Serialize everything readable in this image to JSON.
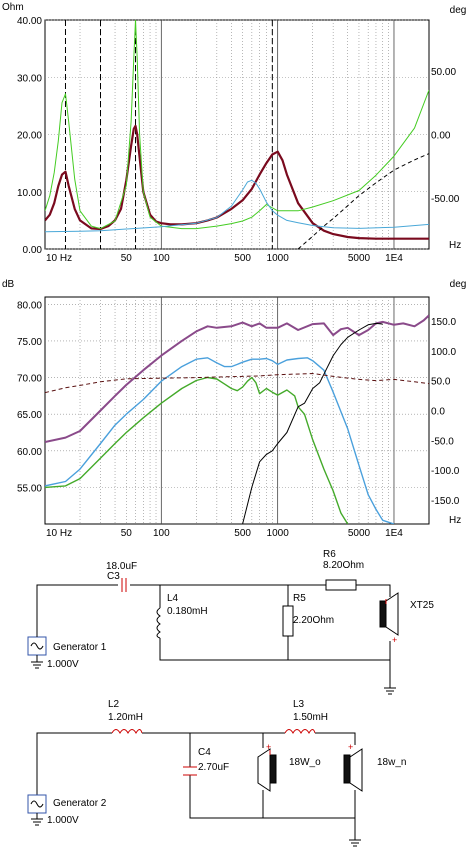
{
  "chart_data": [
    {
      "type": "line",
      "xscale": "log",
      "xlim": [
        10,
        20000
      ],
      "ylim_left": [
        0,
        40
      ],
      "ylim_right": [
        -90,
        90
      ],
      "left_unit": "Ohm",
      "right_unit": "deg",
      "x_unit": "Hz",
      "left_ticks": [
        "0.00",
        "10.00",
        "20.00",
        "30.00",
        "40.00"
      ],
      "left_tick_values": [
        0,
        10,
        20,
        30,
        40
      ],
      "right_ticks": [
        "-50.00",
        "0.00",
        "50.00"
      ],
      "right_tick_values": [
        -50,
        0,
        50
      ],
      "x_ticks": [
        "10 Hz",
        "50",
        "100",
        "500",
        "1000",
        "5000",
        "1E4"
      ],
      "x_tick_values": [
        10,
        50,
        100,
        500,
        1000,
        5000,
        10000
      ],
      "markers_x": [
        15,
        30,
        60,
        900
      ],
      "series": [
        {
          "color": "#7a0a1e",
          "width": 2.2,
          "dash": "",
          "axis": "left",
          "x": [
            10,
            11,
            12,
            13,
            14,
            15,
            16,
            18,
            20,
            25,
            30,
            35,
            40,
            45,
            50,
            55,
            58,
            60,
            62,
            65,
            70,
            80,
            90,
            100,
            120,
            150,
            200,
            250,
            300,
            400,
            500,
            600,
            700,
            800,
            900,
            1000,
            1100,
            1200,
            1500,
            2000,
            2500,
            3000,
            4000,
            5000,
            7000,
            10000,
            15000,
            20000
          ],
          "y": [
            5,
            6,
            8,
            11,
            13,
            13.5,
            11,
            7,
            5,
            3.6,
            3.5,
            4,
            5,
            7,
            12,
            18,
            21,
            21.5,
            20,
            16,
            10,
            6,
            4.8,
            4.5,
            4.3,
            4.3,
            4.5,
            5,
            5.5,
            7,
            8.5,
            10.5,
            13,
            15,
            16.5,
            17,
            15.5,
            13,
            8,
            4.5,
            3.2,
            2.6,
            2.1,
            1.9,
            1.8,
            1.8,
            1.8,
            1.8
          ]
        },
        {
          "color": "#44cc22",
          "width": 1,
          "dash": "",
          "axis": "right",
          "x": [
            10,
            11,
            12,
            13,
            14,
            15,
            16,
            18,
            20,
            25,
            30,
            40,
            50,
            55,
            58,
            60,
            62,
            65,
            70,
            80,
            100,
            150,
            200,
            300,
            400,
            500,
            600,
            700,
            800,
            1000,
            1500,
            2000,
            3000,
            5000,
            7000,
            10000,
            15000,
            20000
          ],
          "y": [
            -60,
            -48,
            -30,
            -5,
            25,
            32,
            10,
            -35,
            -60,
            -72,
            -74,
            -68,
            -40,
            10,
            60,
            90,
            60,
            0,
            -45,
            -65,
            -72,
            -74,
            -74,
            -72,
            -70,
            -68,
            -65,
            -60,
            -55,
            -60,
            -60,
            -57,
            -52,
            -44,
            -32,
            -17,
            5,
            35
          ]
        },
        {
          "color": "#4aa8d8",
          "width": 1,
          "dash": "",
          "axis": "left",
          "x": [
            10,
            20,
            30,
            50,
            100,
            200,
            300,
            400,
            500,
            550,
            600,
            650,
            700,
            800,
            900,
            1000,
            1200,
            1500,
            2000,
            3000,
            5000,
            10000,
            20000
          ],
          "y": [
            3.0,
            3.1,
            3.2,
            3.5,
            3.9,
            4.5,
            5.5,
            7.5,
            10.3,
            11.7,
            12,
            11.5,
            10.5,
            8.2,
            6.7,
            5.9,
            5,
            4.6,
            4.1,
            3.7,
            3.6,
            3.8,
            4.3
          ]
        },
        {
          "color": "#000000",
          "width": 1,
          "dash": "4,3",
          "axis": "right",
          "x": [
            1500,
            2000,
            2500,
            3000,
            4000,
            5000,
            7000,
            10000,
            15000,
            20000
          ],
          "y": [
            -90,
            -80,
            -72,
            -66,
            -56,
            -48,
            -38,
            -28,
            -20,
            -15
          ]
        }
      ]
    },
    {
      "type": "line",
      "xscale": "log",
      "xlim": [
        10,
        20000
      ],
      "ylim_left": [
        50,
        81
      ],
      "ylim_right": [
        -190,
        190
      ],
      "left_unit": "dB",
      "right_unit": "deg",
      "x_unit": "Hz",
      "left_ticks": [
        "55.00",
        "60.00",
        "65.00",
        "70.00",
        "75.00",
        "80.00"
      ],
      "left_tick_values": [
        55,
        60,
        65,
        70,
        75,
        80
      ],
      "right_ticks": [
        "-150.0",
        "-100.0",
        "-50.0",
        "0.0",
        "50.0",
        "100.0",
        "150.0"
      ],
      "right_tick_values": [
        -150,
        -100,
        -50,
        0,
        50,
        100,
        150
      ],
      "x_ticks": [
        "10 Hz",
        "50",
        "100",
        "500",
        "1000",
        "5000",
        "1E4"
      ],
      "x_tick_values": [
        10,
        50,
        100,
        500,
        1000,
        5000,
        10000
      ],
      "series": [
        {
          "color": "#8a4a8a",
          "width": 2,
          "dash": "",
          "axis": "left",
          "x": [
            10,
            15,
            20,
            30,
            40,
            50,
            70,
            100,
            150,
            200,
            250,
            300,
            400,
            500,
            600,
            700,
            800,
            1000,
            1200,
            1500,
            2000,
            2500,
            3000,
            3500,
            4000,
            5000,
            6000,
            7000,
            8000,
            10000,
            12000,
            15000,
            18000,
            20000
          ],
          "y": [
            61.2,
            61.8,
            62.7,
            65.5,
            67.5,
            69,
            71,
            73,
            75,
            76.3,
            77,
            76.8,
            77,
            77.5,
            77,
            77.4,
            76.8,
            76.8,
            77.4,
            76.5,
            77.3,
            77.4,
            75.8,
            76.6,
            76.8,
            75.8,
            76.5,
            77.4,
            77.6,
            77.2,
            77.4,
            77,
            77.8,
            78.5
          ]
        },
        {
          "color": "#4aa0dc",
          "width": 1.4,
          "dash": "",
          "axis": "left",
          "x": [
            10,
            15,
            20,
            30,
            40,
            50,
            70,
            100,
            150,
            200,
            250,
            300,
            350,
            400,
            450,
            500,
            600,
            700,
            800,
            900,
            1000,
            1200,
            1500,
            1800,
            2000,
            2500,
            3000,
            4000,
            5000,
            6000,
            7000,
            8000,
            10000
          ],
          "y": [
            55.2,
            55.8,
            57.5,
            61,
            63.5,
            65,
            67,
            69.5,
            71.5,
            72.5,
            72.7,
            72,
            71.5,
            71.5,
            71.8,
            72.1,
            72.5,
            72.5,
            72.6,
            72.3,
            71.8,
            72.4,
            72.6,
            72.7,
            72.3,
            71,
            68,
            63,
            58,
            54,
            52,
            50.5,
            50
          ]
        },
        {
          "color": "#44aa2a",
          "width": 1.4,
          "dash": "",
          "axis": "left",
          "x": [
            10,
            15,
            20,
            30,
            40,
            50,
            70,
            100,
            150,
            200,
            250,
            300,
            350,
            400,
            450,
            500,
            550,
            600,
            650,
            700,
            800,
            900,
            1000,
            1200,
            1400,
            1500,
            1700,
            2000,
            2500,
            3000,
            3500,
            4000
          ],
          "y": [
            55,
            55.2,
            56.2,
            59,
            61,
            62.5,
            64.5,
            66.5,
            68.5,
            69.6,
            70,
            69.8,
            69.1,
            68.5,
            68.2,
            68.7,
            69.5,
            70,
            69.3,
            67.8,
            68.5,
            68,
            67.6,
            68.3,
            67.5,
            66,
            65,
            61.5,
            57.5,
            54.5,
            51.5,
            50
          ]
        },
        {
          "color": "#000000",
          "width": 1,
          "dash": "",
          "axis": "left",
          "x": [
            500,
            600,
            700,
            800,
            900,
            1000,
            1200,
            1500,
            1700,
            2000,
            2300,
            2600,
            3000,
            3500,
            4000,
            5000,
            6000,
            7000,
            8000
          ],
          "y": [
            50,
            55,
            58.5,
            59.5,
            60,
            61,
            62.5,
            66,
            66.5,
            68.5,
            69.3,
            71,
            73,
            74.5,
            75.5,
            76.5,
            77.2,
            77.4,
            77.3
          ]
        },
        {
          "color": "#5a1010",
          "width": 1,
          "dash": "4,3",
          "axis": "right",
          "x": [
            10,
            15,
            20,
            30,
            50,
            100,
            200,
            300,
            500,
            700,
            1000,
            2000,
            3000,
            5000,
            7000,
            10000,
            15000,
            20000
          ],
          "y": [
            30,
            38,
            42,
            48,
            53,
            54,
            55,
            56,
            57,
            58,
            60,
            62,
            57,
            52,
            50,
            52,
            48,
            45
          ]
        }
      ]
    }
  ],
  "circuit": {
    "top": {
      "components": {
        "c3_name": "C3",
        "c3_value": "18.0uF",
        "l4_name": "L4",
        "l4_value": "0.180mH",
        "r5_name": "R5",
        "r5_value": "2.20Ohm",
        "r6_name": "R6",
        "r6_value": "8.20Ohm",
        "speaker": "XT25"
      },
      "generator_name": "Generator 1",
      "generator_value": "1.000V"
    },
    "bottom": {
      "components": {
        "l2_name": "L2",
        "l2_value": "1.20mH",
        "l3_name": "L3",
        "l3_value": "1.50mH",
        "c4_name": "C4",
        "c4_value": "2.70uF",
        "speaker1": "18W_o",
        "speaker2": "18w_n"
      },
      "generator_name": "Generator 2",
      "generator_value": "1.000V"
    }
  }
}
